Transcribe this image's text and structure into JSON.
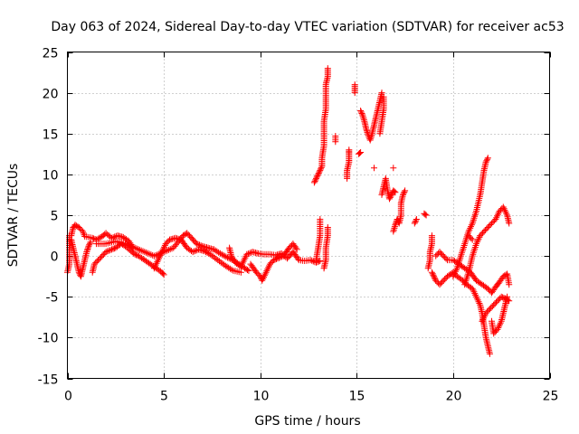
{
  "chart_data": {
    "type": "scatter",
    "title": "Day 063 of 2024, Sidereal Day-to-day VTEC variation (SDTVAR) for receiver ac53",
    "xlabel": "GPS time / hours",
    "ylabel": "SDTVAR / TECUs",
    "xlim": [
      0,
      25
    ],
    "ylim": [
      -15,
      25
    ],
    "x_ticks": [
      "0",
      "5",
      "10",
      "15",
      "20",
      "25"
    ],
    "y_ticks": [
      "-15",
      "-10",
      "-5",
      "0",
      "5",
      "10",
      "15",
      "20",
      "25"
    ],
    "grid": true,
    "marker": "+",
    "series": [
      {
        "name": "SDTVAR",
        "color": "#ff0000",
        "segments": [
          [
            [
              0.0,
              -2.0
            ],
            [
              0.1,
              -1.0
            ],
            [
              0.1,
              0.0
            ],
            [
              0.1,
              1.5
            ],
            [
              0.1,
              2.5
            ]
          ],
          [
            [
              0.2,
              2.5
            ],
            [
              0.3,
              3.5
            ],
            [
              0.4,
              3.8
            ],
            [
              0.6,
              3.5
            ],
            [
              0.8,
              3.0
            ],
            [
              0.9,
              2.4
            ],
            [
              1.1,
              2.3
            ],
            [
              1.3,
              2.2
            ],
            [
              1.5,
              2.0
            ],
            [
              1.8,
              2.4
            ],
            [
              2.0,
              2.8
            ],
            [
              2.3,
              2.2
            ],
            [
              2.6,
              2.5
            ],
            [
              2.9,
              2.3
            ],
            [
              3.2,
              1.8
            ],
            [
              3.4,
              1.0
            ]
          ],
          [
            [
              0.2,
              2.0
            ],
            [
              0.3,
              1.0
            ],
            [
              0.4,
              0.0
            ],
            [
              0.5,
              -1.0
            ],
            [
              0.6,
              -2.0
            ],
            [
              0.7,
              -2.5
            ],
            [
              0.8,
              -1.5
            ],
            [
              0.9,
              -0.5
            ],
            [
              1.0,
              0.5
            ],
            [
              1.1,
              1.2
            ],
            [
              1.2,
              1.7
            ]
          ],
          [
            [
              1.3,
              -2.0
            ],
            [
              1.4,
              -1.0
            ],
            [
              1.6,
              -0.5
            ],
            [
              1.8,
              0.0
            ],
            [
              2.0,
              0.5
            ],
            [
              2.3,
              0.8
            ],
            [
              2.5,
              1.0
            ],
            [
              2.8,
              1.5
            ],
            [
              3.0,
              1.2
            ],
            [
              3.3,
              0.6
            ],
            [
              3.5,
              0.2
            ],
            [
              3.7,
              0.0
            ],
            [
              4.0,
              -0.5
            ],
            [
              4.3,
              -1.0
            ],
            [
              4.6,
              -1.5
            ],
            [
              4.9,
              -2.0
            ],
            [
              5.0,
              -2.3
            ]
          ],
          [
            [
              1.5,
              1.5
            ],
            [
              2.0,
              1.5
            ],
            [
              2.5,
              1.8
            ],
            [
              3.0,
              1.5
            ],
            [
              3.5,
              1.0
            ],
            [
              4.0,
              0.5
            ],
            [
              4.5,
              0.0
            ],
            [
              5.0,
              0.5
            ],
            [
              5.5,
              1.0
            ],
            [
              6.0,
              2.5
            ],
            [
              6.2,
              2.8
            ],
            [
              6.4,
              2.3
            ],
            [
              6.7,
              1.5
            ],
            [
              7.0,
              1.2
            ],
            [
              7.3,
              1.0
            ],
            [
              7.6,
              0.8
            ],
            [
              8.0,
              0.2
            ],
            [
              8.3,
              -0.2
            ],
            [
              8.6,
              -0.5
            ],
            [
              8.9,
              -1.0
            ],
            [
              9.2,
              -1.5
            ],
            [
              9.4,
              -1.8
            ]
          ],
          [
            [
              4.5,
              -1.5
            ],
            [
              4.7,
              -0.5
            ],
            [
              4.9,
              0.5
            ],
            [
              5.1,
              1.5
            ],
            [
              5.3,
              2.0
            ],
            [
              5.6,
              2.2
            ],
            [
              5.9,
              2.0
            ],
            [
              6.2,
              1.0
            ],
            [
              6.5,
              0.5
            ],
            [
              6.8,
              0.8
            ],
            [
              7.1,
              0.6
            ],
            [
              7.4,
              0.2
            ],
            [
              7.8,
              -0.5
            ],
            [
              8.2,
              -1.2
            ],
            [
              8.6,
              -1.8
            ],
            [
              9.0,
              -2.0
            ]
          ],
          [
            [
              8.4,
              1.0
            ],
            [
              8.5,
              0.0
            ],
            [
              8.7,
              -0.8
            ],
            [
              9.0,
              -1.3
            ],
            [
              9.3,
              0.2
            ],
            [
              9.6,
              0.5
            ],
            [
              9.9,
              0.3
            ],
            [
              10.2,
              0.2
            ],
            [
              10.5,
              0.2
            ],
            [
              10.8,
              0.1
            ],
            [
              11.1,
              0.3
            ],
            [
              11.4,
              -0.3
            ],
            [
              11.7,
              0.5
            ],
            [
              12.0,
              -0.5
            ],
            [
              12.3,
              -0.6
            ],
            [
              12.6,
              -0.5
            ],
            [
              12.9,
              -0.8
            ],
            [
              13.1,
              -0.6
            ]
          ],
          [
            [
              9.5,
              -1.0
            ],
            [
              9.8,
              -2.0
            ],
            [
              10.0,
              -2.5
            ],
            [
              10.1,
              -3.0
            ],
            [
              10.3,
              -2.0
            ],
            [
              10.5,
              -1.0
            ],
            [
              10.7,
              -0.5
            ],
            [
              10.9,
              -0.3
            ],
            [
              11.2,
              0.0
            ],
            [
              11.5,
              1.0
            ],
            [
              11.7,
              1.5
            ],
            [
              11.9,
              0.8
            ]
          ],
          [
            [
              12.9,
              -0.5
            ],
            [
              13.0,
              1.0
            ],
            [
              13.1,
              2.5
            ],
            [
              13.1,
              4.5
            ]
          ],
          [
            [
              13.3,
              -1.5
            ],
            [
              13.4,
              -0.5
            ],
            [
              13.4,
              1.0
            ],
            [
              13.5,
              2.5
            ],
            [
              13.5,
              3.5
            ]
          ],
          [
            [
              12.8,
              9.0
            ],
            [
              12.9,
              9.5
            ],
            [
              13.0,
              10.0
            ],
            [
              13.1,
              10.5
            ],
            [
              13.2,
              11.0
            ],
            [
              13.2,
              12.0
            ],
            [
              13.3,
              13.5
            ],
            [
              13.3,
              15.0
            ],
            [
              13.3,
              16.5
            ],
            [
              13.4,
              18.0
            ],
            [
              13.4,
              19.5
            ],
            [
              13.4,
              21.0
            ],
            [
              13.5,
              22.0
            ],
            [
              13.5,
              23.0
            ]
          ],
          [
            [
              13.9,
              14.0
            ],
            [
              13.9,
              14.7
            ]
          ],
          [
            [
              14.5,
              9.5
            ],
            [
              14.5,
              10.5
            ],
            [
              14.6,
              11.5
            ],
            [
              14.6,
              12.5
            ],
            [
              14.6,
              13.0
            ]
          ],
          [
            [
              14.9,
              20.0
            ],
            [
              14.9,
              21.0
            ]
          ],
          [
            [
              15.1,
              12.5
            ],
            [
              15.2,
              12.7
            ]
          ],
          [
            [
              15.2,
              17.8
            ],
            [
              15.3,
              17.3
            ],
            [
              15.4,
              16.5
            ],
            [
              15.5,
              15.5
            ],
            [
              15.6,
              14.8
            ],
            [
              15.7,
              14.2
            ],
            [
              15.8,
              15.0
            ],
            [
              15.9,
              16.0
            ],
            [
              16.0,
              17.0
            ],
            [
              16.1,
              18.0
            ],
            [
              16.2,
              19.0
            ],
            [
              16.3,
              20.0
            ]
          ],
          [
            [
              15.9,
              10.8
            ]
          ],
          [
            [
              16.2,
              15.0
            ],
            [
              16.3,
              16.5
            ],
            [
              16.4,
              18.0
            ],
            [
              16.4,
              19.5
            ]
          ],
          [
            [
              16.3,
              7.5
            ],
            [
              16.4,
              8.5
            ],
            [
              16.5,
              9.5
            ],
            [
              16.6,
              8.0
            ],
            [
              16.7,
              7.0
            ],
            [
              16.8,
              7.5
            ],
            [
              16.9,
              8.0
            ],
            [
              17.0,
              7.8
            ]
          ],
          [
            [
              16.9,
              10.8
            ]
          ],
          [
            [
              16.9,
              3.0
            ],
            [
              17.0,
              3.8
            ],
            [
              17.1,
              4.5
            ],
            [
              17.2,
              4.0
            ],
            [
              17.3,
              5.0
            ],
            [
              17.3,
              6.5
            ],
            [
              17.4,
              7.5
            ],
            [
              17.5,
              8.0
            ]
          ],
          [
            [
              18.0,
              4.0
            ],
            [
              18.1,
              4.5
            ]
          ],
          [
            [
              18.5,
              5.2
            ],
            [
              18.6,
              5.0
            ]
          ],
          [
            [
              18.7,
              -1.5
            ],
            [
              18.8,
              -0.5
            ],
            [
              18.8,
              0.5
            ],
            [
              18.9,
              1.5
            ],
            [
              18.9,
              2.5
            ]
          ],
          [
            [
              18.9,
              -2.0
            ],
            [
              19.0,
              -2.5
            ],
            [
              19.1,
              -3.0
            ],
            [
              19.3,
              -3.5
            ],
            [
              19.5,
              -3.0
            ],
            [
              19.7,
              -2.5
            ],
            [
              20.0,
              -2.0
            ],
            [
              20.2,
              -2.5
            ],
            [
              20.5,
              -3.0
            ],
            [
              20.7,
              -3.5
            ],
            [
              21.0,
              -4.0
            ],
            [
              21.2,
              -5.0
            ],
            [
              21.4,
              -6.0
            ],
            [
              21.5,
              -7.0
            ],
            [
              21.6,
              -8.5
            ],
            [
              21.7,
              -10.0
            ],
            [
              21.8,
              -11.0
            ],
            [
              21.9,
              -12.0
            ]
          ],
          [
            [
              19.1,
              0.0
            ],
            [
              19.3,
              0.5
            ],
            [
              19.5,
              0.0
            ],
            [
              19.7,
              -0.5
            ],
            [
              20.0,
              -0.5
            ],
            [
              20.3,
              -1.0
            ],
            [
              20.6,
              -1.5
            ],
            [
              20.9,
              -2.0
            ],
            [
              21.2,
              -3.0
            ],
            [
              21.5,
              -3.5
            ],
            [
              21.8,
              -4.0
            ],
            [
              22.0,
              -4.5
            ],
            [
              22.2,
              -3.8
            ],
            [
              22.4,
              -3.2
            ],
            [
              22.6,
              -2.5
            ],
            [
              22.8,
              -2.2
            ],
            [
              22.9,
              -3.5
            ]
          ],
          [
            [
              20.0,
              -2.5
            ],
            [
              20.2,
              -1.5
            ],
            [
              20.4,
              0.0
            ],
            [
              20.6,
              1.5
            ],
            [
              20.8,
              3.0
            ],
            [
              21.0,
              4.0
            ],
            [
              21.2,
              5.5
            ],
            [
              21.4,
              7.5
            ],
            [
              21.5,
              9.0
            ],
            [
              21.6,
              10.5
            ],
            [
              21.7,
              11.5
            ],
            [
              21.8,
              12.0
            ]
          ],
          [
            [
              20.6,
              -3.5
            ],
            [
              20.8,
              -2.0
            ],
            [
              21.0,
              0.0
            ],
            [
              21.2,
              1.5
            ],
            [
              21.4,
              2.5
            ],
            [
              21.6,
              3.0
            ],
            [
              21.8,
              3.5
            ],
            [
              22.0,
              4.0
            ],
            [
              22.2,
              4.5
            ],
            [
              22.4,
              5.5
            ],
            [
              22.6,
              6.0
            ],
            [
              22.8,
              5.0
            ],
            [
              22.9,
              4.0
            ]
          ],
          [
            [
              20.8,
              2.5
            ],
            [
              21.0,
              2.0
            ]
          ],
          [
            [
              21.5,
              -8.0
            ],
            [
              21.7,
              -7.0
            ],
            [
              21.9,
              -6.5
            ],
            [
              22.1,
              -6.0
            ],
            [
              22.3,
              -5.5
            ],
            [
              22.5,
              -5.0
            ],
            [
              22.7,
              -5.2
            ],
            [
              22.9,
              -5.5
            ]
          ],
          [
            [
              22.0,
              -8.0
            ],
            [
              22.1,
              -9.5
            ],
            [
              22.3,
              -9.0
            ],
            [
              22.5,
              -8.0
            ],
            [
              22.6,
              -7.0
            ],
            [
              22.7,
              -6.0
            ],
            [
              22.8,
              -5.0
            ]
          ]
        ]
      }
    ]
  }
}
